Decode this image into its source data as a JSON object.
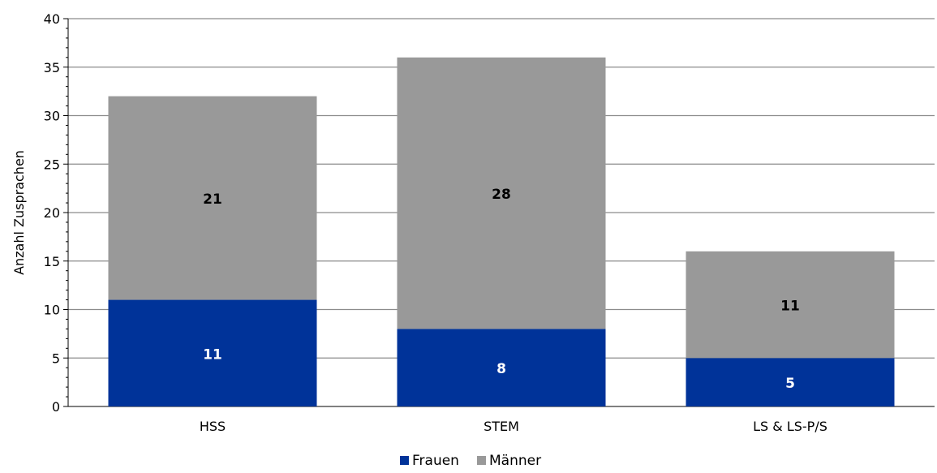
{
  "chart_data": {
    "type": "bar",
    "stacked": true,
    "categories": [
      "HSS",
      "STEM",
      "LS & LS-P/S"
    ],
    "series": [
      {
        "name": "Frauen",
        "values": [
          11,
          8,
          5
        ],
        "color": "#003399",
        "label_color": "#ffffff"
      },
      {
        "name": "Männer",
        "values": [
          21,
          28,
          11
        ],
        "color": "#999999",
        "label_color": "#000000"
      }
    ],
    "title": "",
    "xlabel": "",
    "ylabel": "Anzahl Zusprachen",
    "ylim": [
      0,
      40
    ],
    "yticks": [
      0,
      5,
      10,
      15,
      20,
      25,
      30,
      35,
      40
    ],
    "grid": true,
    "legend_position": "bottom"
  }
}
